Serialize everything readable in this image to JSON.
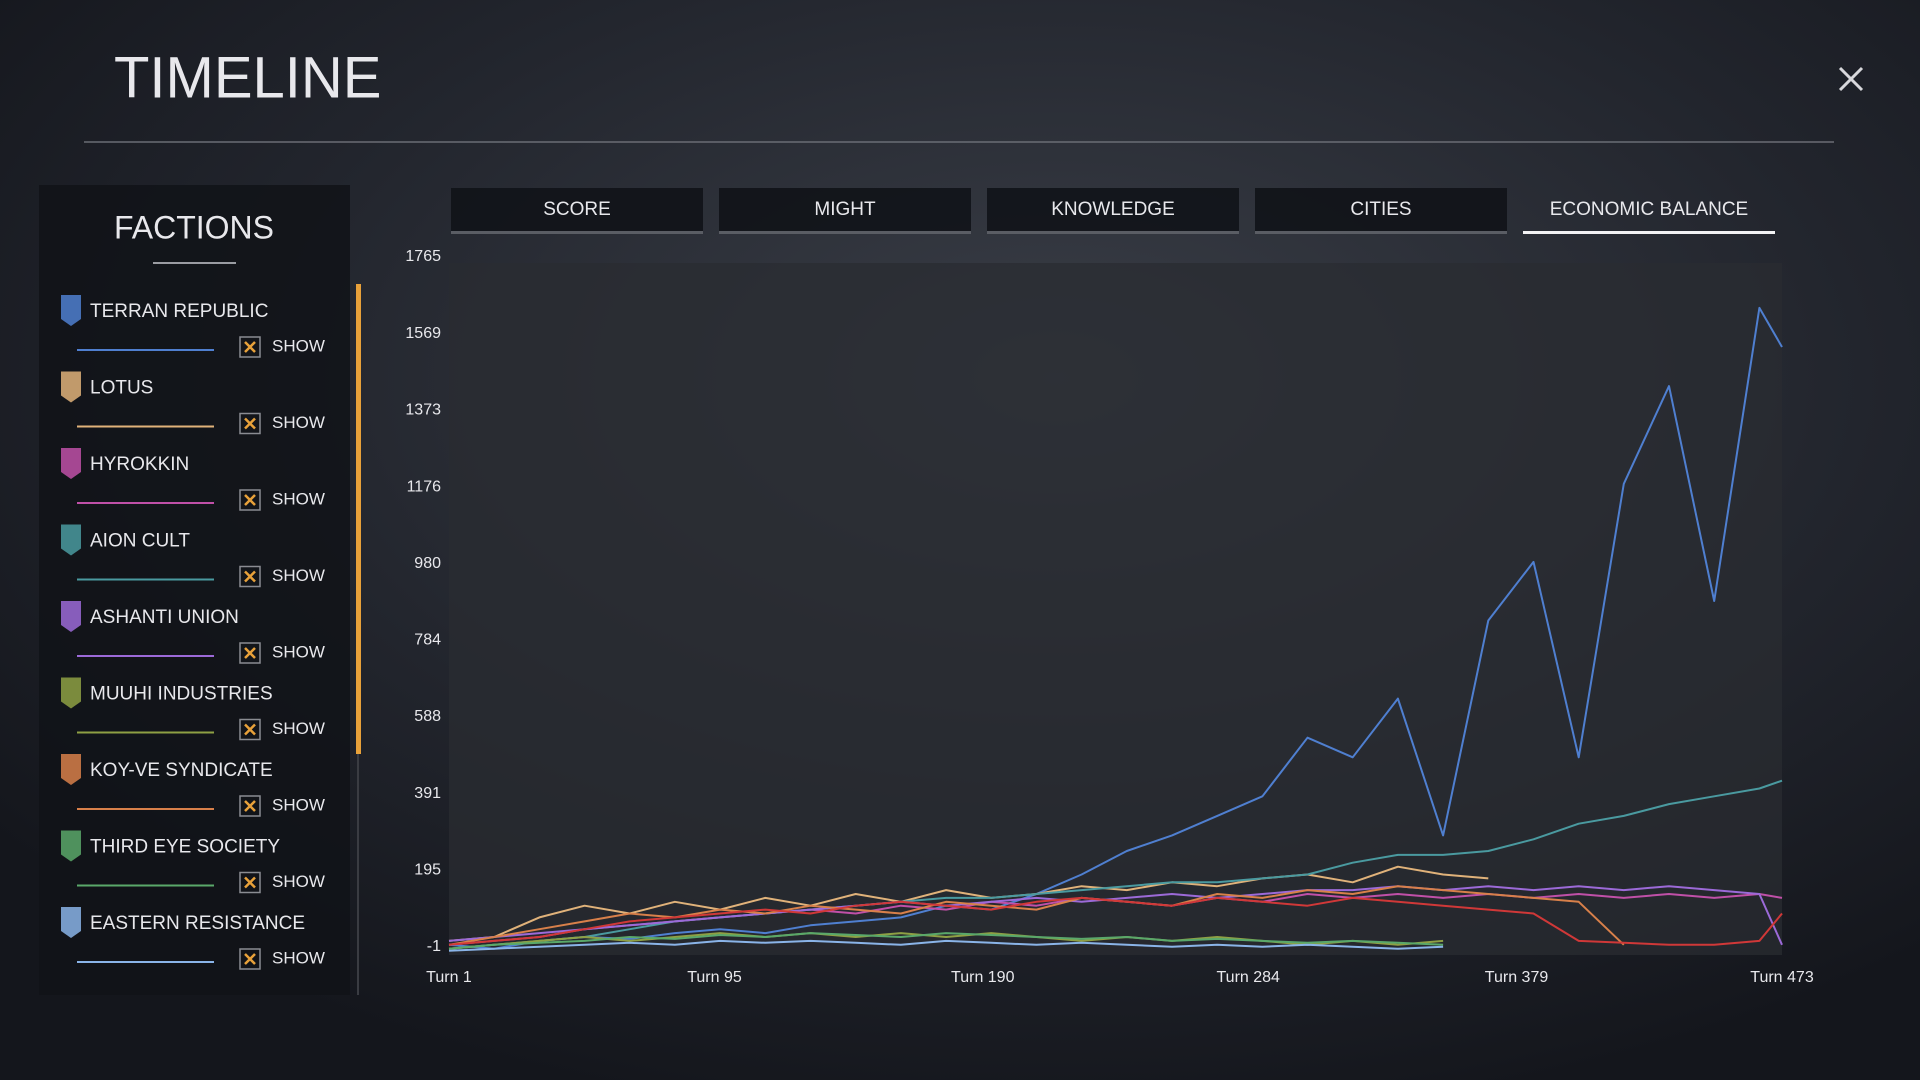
{
  "header": {
    "title": "TIMELINE"
  },
  "tabs": [
    {
      "label": "SCORE",
      "active": false
    },
    {
      "label": "MIGHT",
      "active": false
    },
    {
      "label": "KNOWLEDGE",
      "active": false
    },
    {
      "label": "CITIES",
      "active": false
    },
    {
      "label": "ECONOMIC BALANCE",
      "active": true
    }
  ],
  "sidebar": {
    "title": "FACTIONS",
    "toggles": [
      "SHOW",
      "SHOW",
      "SHOW",
      "SHOW",
      "SHOW",
      "SHOW",
      "SHOW",
      "SHOW",
      "SHOW"
    ]
  },
  "chart_data": {
    "type": "line",
    "x": [
      1,
      17,
      33,
      49,
      65,
      81,
      97,
      113,
      129,
      145,
      161,
      177,
      193,
      209,
      225,
      241,
      257,
      273,
      289,
      305,
      321,
      337,
      353,
      369,
      385,
      401,
      417,
      433,
      449,
      465,
      473
    ],
    "xlim": [
      1,
      473
    ],
    "xticks": [
      {
        "value": 1,
        "label": "Turn 1"
      },
      {
        "value": 95,
        "label": "Turn 95"
      },
      {
        "value": 190,
        "label": "Turn 190"
      },
      {
        "value": 284,
        "label": "Turn 284"
      },
      {
        "value": 379,
        "label": "Turn 379"
      },
      {
        "value": 473,
        "label": "Turn 473"
      }
    ],
    "ylim": [
      -1,
      1765
    ],
    "yticks": [
      1765,
      1569,
      1373,
      1176,
      980,
      784,
      588,
      391,
      195,
      -1
    ],
    "series": [
      {
        "name": "TERRAN REPUBLIC",
        "color": "#4f7fd0",
        "values": [
          20,
          10,
          30,
          40,
          35,
          50,
          60,
          50,
          70,
          80,
          90,
          120,
          110,
          150,
          200,
          260,
          300,
          350,
          400,
          550,
          500,
          650,
          300,
          850,
          1000,
          500,
          1200,
          1450,
          900,
          1650,
          1550
        ]
      },
      {
        "name": "LOTUS",
        "color": "#e0b27a",
        "values": [
          30,
          40,
          90,
          120,
          100,
          130,
          110,
          140,
          120,
          150,
          130,
          160,
          140,
          150,
          170,
          160,
          180,
          170,
          190,
          200,
          180,
          220,
          200,
          190,
          null,
          null,
          null,
          null,
          null,
          null,
          null
        ]
      },
      {
        "name": "HYROKKIN",
        "color": "#c050a8",
        "values": [
          20,
          30,
          40,
          60,
          70,
          80,
          90,
          100,
          110,
          100,
          120,
          110,
          130,
          120,
          140,
          130,
          120,
          140,
          130,
          150,
          140,
          150,
          140,
          150,
          140,
          150,
          140,
          150,
          140,
          150,
          140
        ]
      },
      {
        "name": "AION CULT",
        "color": "#4a9aa0",
        "values": [
          10,
          20,
          30,
          40,
          60,
          80,
          90,
          100,
          110,
          120,
          130,
          140,
          140,
          150,
          160,
          170,
          180,
          180,
          190,
          200,
          230,
          250,
          250,
          260,
          290,
          330,
          350,
          380,
          400,
          420,
          440
        ]
      },
      {
        "name": "ASHANTI UNION",
        "color": "#9c6ad8",
        "values": [
          30,
          40,
          50,
          60,
          70,
          80,
          90,
          100,
          110,
          120,
          130,
          120,
          130,
          140,
          130,
          140,
          150,
          140,
          150,
          160,
          160,
          170,
          160,
          170,
          160,
          170,
          160,
          170,
          160,
          150,
          20
        ]
      },
      {
        "name": "MUUHI INDUSTRIES",
        "color": "#8ea044",
        "values": [
          10,
          20,
          30,
          40,
          30,
          40,
          50,
          40,
          50,
          40,
          50,
          40,
          50,
          40,
          30,
          40,
          30,
          40,
          30,
          20,
          30,
          20,
          30,
          null,
          null,
          null,
          null,
          null,
          null,
          null,
          null
        ]
      },
      {
        "name": "KOY-VE SYNDICATE",
        "color": "#d8804a",
        "values": [
          20,
          40,
          60,
          80,
          100,
          90,
          110,
          100,
          120,
          110,
          100,
          130,
          120,
          110,
          140,
          130,
          120,
          150,
          140,
          160,
          150,
          170,
          160,
          150,
          140,
          130,
          20,
          null,
          null,
          null,
          null
        ]
      },
      {
        "name": "THIRD EYE SOCIETY",
        "color": "#5aa86a",
        "values": [
          10,
          20,
          25,
          30,
          40,
          35,
          45,
          40,
          50,
          45,
          40,
          50,
          45,
          40,
          35,
          40,
          30,
          35,
          30,
          25,
          30,
          25,
          20,
          null,
          null,
          null,
          null,
          null,
          null,
          null,
          null
        ]
      },
      {
        "name": "EASTERN RESISTANCE",
        "color": "#8ab4e8",
        "values": [
          5,
          10,
          15,
          20,
          25,
          20,
          30,
          25,
          30,
          25,
          20,
          30,
          25,
          20,
          25,
          20,
          15,
          20,
          15,
          20,
          15,
          10,
          15,
          null,
          null,
          null,
          null,
          null,
          null,
          null,
          null
        ]
      },
      {
        "color": "#d03838",
        "values": [
          20,
          30,
          40,
          60,
          80,
          90,
          100,
          110,
          100,
          120,
          130,
          120,
          110,
          130,
          140,
          130,
          120,
          140,
          130,
          120,
          140,
          130,
          120,
          110,
          100,
          30,
          25,
          20,
          20,
          30,
          100
        ]
      }
    ]
  }
}
